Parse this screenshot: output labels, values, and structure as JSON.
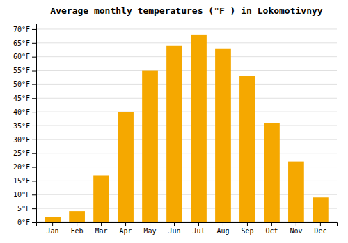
{
  "chart_data": {
    "type": "bar",
    "title": "Average monthly temperatures (°F ) in Lokomotivnyy",
    "categories": [
      "Jan",
      "Feb",
      "Mar",
      "Apr",
      "May",
      "Jun",
      "Jul",
      "Aug",
      "Sep",
      "Oct",
      "Nov",
      "Dec"
    ],
    "values": [
      2,
      4,
      17,
      40,
      55,
      64,
      68,
      63,
      53,
      36,
      22,
      9
    ],
    "color": "#F5A800",
    "ylim": [
      0,
      72
    ],
    "yticks": [
      {
        "value": 0,
        "label": "0°F"
      },
      {
        "value": 5,
        "label": "5°F"
      },
      {
        "value": 10,
        "label": "10°F"
      },
      {
        "value": 15,
        "label": "15°F"
      },
      {
        "value": 20,
        "label": "20°F"
      },
      {
        "value": 25,
        "label": "25°F"
      },
      {
        "value": 30,
        "label": "30°F"
      },
      {
        "value": 35,
        "label": "35°F"
      },
      {
        "value": 40,
        "label": "40°F"
      },
      {
        "value": 45,
        "label": "45°F"
      },
      {
        "value": 50,
        "label": "50°F"
      },
      {
        "value": 55,
        "label": "55°F"
      },
      {
        "value": 60,
        "label": "60°F"
      },
      {
        "value": 65,
        "label": "65°F"
      },
      {
        "value": 70,
        "label": "70°F"
      }
    ],
    "grid": true
  }
}
